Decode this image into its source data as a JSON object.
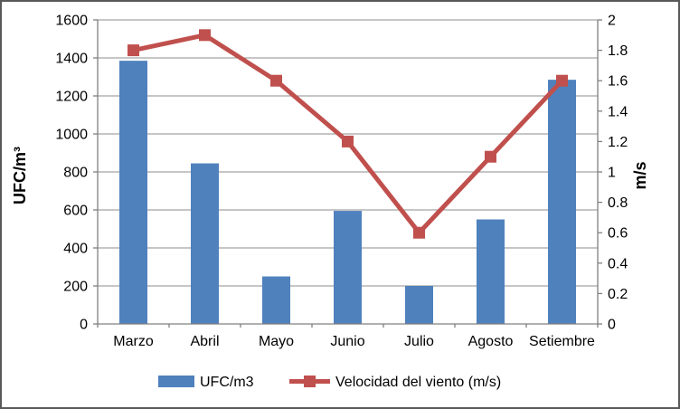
{
  "chart_data": {
    "type": "bar+line combo",
    "title": "",
    "categories": [
      "Marzo",
      "Abril",
      "Mayo",
      "Junio",
      "Julio",
      "Agosto",
      "Setiembre"
    ],
    "series": [
      {
        "name": "UFC/m3",
        "type": "bar",
        "axis": "left",
        "color": "#4F81BD",
        "values": [
          1385,
          845,
          250,
          595,
          200,
          550,
          1285
        ]
      },
      {
        "name": "Velocidad del viento (m/s)",
        "type": "line",
        "axis": "right",
        "color": "#C0504D",
        "marker": "square",
        "values": [
          1.8,
          1.9,
          1.6,
          1.2,
          0.6,
          1.1,
          1.6
        ]
      }
    ],
    "left_axis": {
      "title": "UFC/m³",
      "min": 0,
      "max": 1600,
      "step": 200,
      "tick_labels": [
        "0",
        "200",
        "400",
        "600",
        "800",
        "1000",
        "1200",
        "1400",
        "1600"
      ]
    },
    "right_axis": {
      "title": "m/s",
      "min": 0,
      "max": 2,
      "step": 0.2,
      "tick_labels": [
        "0",
        "0.2",
        "0.4",
        "0.6",
        "0.8",
        "1",
        "1.2",
        "1.4",
        "1.6",
        "1.8",
        "2"
      ]
    },
    "legend": {
      "position": "bottom",
      "entries": [
        "UFC/m3",
        "Velocidad del viento (m/s)"
      ]
    },
    "grid": true,
    "colors": {
      "gridline": "#8C8C8C",
      "axis_line": "#808080",
      "text": "#000000",
      "background": "#FFFFFF",
      "frame_border": "#595959"
    }
  }
}
